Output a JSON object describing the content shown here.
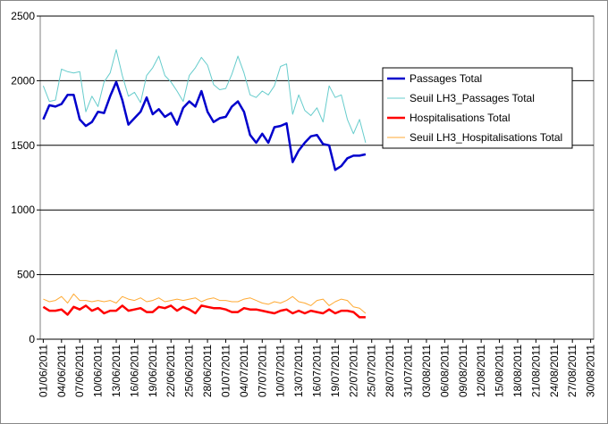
{
  "chart_data": {
    "type": "line",
    "categories": [
      "01/06/2011",
      null,
      null,
      "04/06/2011",
      null,
      null,
      "07/06/2011",
      null,
      null,
      "10/06/2011",
      null,
      null,
      "13/06/2011",
      null,
      null,
      "16/06/2011",
      null,
      null,
      "19/06/2011",
      null,
      null,
      "22/06/2011",
      null,
      null,
      "25/06/2011",
      null,
      null,
      "28/06/2011",
      null,
      null,
      "01/07/2011",
      null,
      null,
      "04/07/2011",
      null,
      null,
      "07/07/2011",
      null,
      null,
      "10/07/2011",
      null,
      null,
      "13/07/2011",
      null,
      null,
      "16/07/2011",
      null,
      null,
      "19/07/2011",
      null,
      null,
      "22/07/2011",
      null,
      null,
      "25/07/2011",
      null,
      null,
      "28/07/2011",
      null,
      null,
      "31/07/2011",
      null,
      null,
      "03/08/2011",
      null,
      null,
      "06/08/2011",
      null,
      null,
      "09/08/2011",
      null,
      null,
      "12/08/2011",
      null,
      null,
      "15/08/2011",
      null,
      null,
      "18/08/2011",
      null,
      null,
      "21/08/2011",
      null,
      null,
      "24/08/2011",
      null,
      null,
      "27/08/2011",
      null,
      null,
      "30/08/2011"
    ],
    "series": [
      {
        "name": "Passages Total",
        "color": "#0000cc",
        "values": [
          1700,
          1810,
          1800,
          1820,
          1890,
          1890,
          1700,
          1650,
          1680,
          1760,
          1750,
          1880,
          1990,
          1850,
          1660,
          1710,
          1760,
          1870,
          1740,
          1780,
          1720,
          1750,
          1660,
          1790,
          1840,
          1800,
          1920,
          1760,
          1680,
          1710,
          1720,
          1800,
          1840,
          1760,
          1580,
          1520,
          1590,
          1520,
          1640,
          1650,
          1670,
          1370,
          1460,
          1520,
          1570,
          1580,
          1510,
          1500,
          1310,
          1340,
          1400,
          1420,
          1420,
          1430,
          null,
          null,
          null,
          null,
          null,
          null,
          null,
          null,
          null,
          null,
          null,
          null,
          null,
          null,
          null,
          null,
          null,
          null,
          null,
          null,
          null,
          null,
          null,
          null,
          null,
          null,
          null,
          null,
          null,
          null,
          null,
          null,
          null,
          null,
          null,
          null,
          null
        ]
      },
      {
        "name": "Seuil LH3_Passages Total",
        "color": "#66cccc",
        "values": [
          1960,
          1840,
          1850,
          2090,
          2070,
          2060,
          2070,
          1760,
          1880,
          1800,
          1990,
          2060,
          2240,
          2040,
          1880,
          1910,
          1830,
          2040,
          2100,
          2190,
          2040,
          1990,
          1920,
          1840,
          2040,
          2100,
          2180,
          2120,
          1970,
          1930,
          1940,
          2050,
          2190,
          2060,
          1890,
          1870,
          1920,
          1890,
          1960,
          2110,
          2130,
          1740,
          1890,
          1770,
          1730,
          1790,
          1680,
          1960,
          1870,
          1890,
          1700,
          1590,
          1700,
          1520,
          null,
          null,
          null,
          null,
          null,
          null,
          null,
          null,
          null,
          null,
          null,
          null,
          null,
          null,
          null,
          null,
          null,
          null,
          null,
          null,
          null,
          null,
          null,
          null,
          null,
          null,
          null,
          null,
          null,
          null,
          null,
          null,
          null,
          null,
          null,
          null,
          null
        ]
      },
      {
        "name": "Hospitalisations Total",
        "color": "#ff0000",
        "values": [
          250,
          220,
          220,
          230,
          190,
          250,
          230,
          260,
          220,
          240,
          200,
          220,
          220,
          260,
          220,
          230,
          240,
          210,
          210,
          250,
          240,
          260,
          220,
          250,
          230,
          200,
          260,
          250,
          240,
          240,
          230,
          210,
          210,
          240,
          230,
          230,
          220,
          210,
          200,
          220,
          230,
          200,
          220,
          200,
          220,
          210,
          200,
          230,
          200,
          220,
          220,
          210,
          170,
          170,
          null,
          null,
          null,
          null,
          null,
          null,
          null,
          null,
          null,
          null,
          null,
          null,
          null,
          null,
          null,
          null,
          null,
          null,
          null,
          null,
          null,
          null,
          null,
          null,
          null,
          null,
          null,
          null,
          null,
          null,
          null,
          null,
          null,
          null,
          null,
          null,
          null
        ]
      },
      {
        "name": "Seuil LH3_Hospitalisations Total",
        "color": "#ffaa33",
        "values": [
          310,
          290,
          300,
          330,
          280,
          350,
          300,
          300,
          290,
          300,
          290,
          300,
          280,
          330,
          310,
          300,
          320,
          290,
          300,
          320,
          290,
          300,
          310,
          300,
          310,
          320,
          290,
          310,
          320,
          300,
          300,
          290,
          290,
          310,
          320,
          300,
          280,
          270,
          290,
          280,
          300,
          330,
          290,
          280,
          260,
          300,
          310,
          260,
          290,
          310,
          300,
          250,
          240,
          200,
          null,
          null,
          null,
          null,
          null,
          null,
          null,
          null,
          null,
          null,
          null,
          null,
          null,
          null,
          null,
          null,
          null,
          null,
          null,
          null,
          null,
          null,
          null,
          null,
          null,
          null,
          null,
          null,
          null,
          null,
          null,
          null,
          null,
          null,
          null,
          null,
          null
        ]
      }
    ],
    "ylim": [
      0,
      2500
    ],
    "yticks": [
      0,
      500,
      1000,
      1500,
      2000,
      2500
    ],
    "grid": true,
    "legend": "right"
  }
}
